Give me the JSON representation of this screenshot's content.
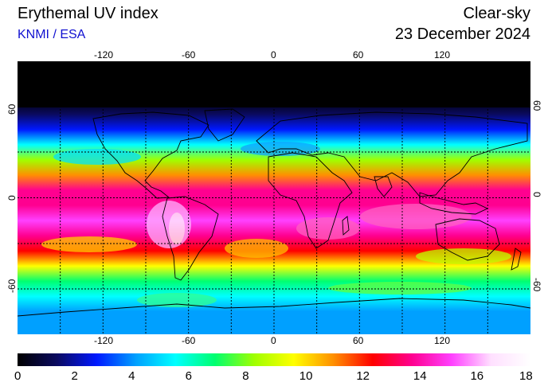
{
  "header": {
    "title": "Erythemal UV index",
    "credit": "KNMI / ESA",
    "mode": "Clear-sky",
    "date": "23 December 2024"
  },
  "map": {
    "projection": "equirectangular",
    "lon_ticks_top": [
      "-120",
      "-60",
      "0",
      "60",
      "120"
    ],
    "lon_ticks_bottom": [
      "-120",
      "-60",
      "0",
      "60",
      "120"
    ],
    "lat_ticks_left": [
      "60",
      "0",
      "-60"
    ],
    "lat_ticks_right": [
      "60",
      "0",
      "-60"
    ],
    "gridlines": "dotted every 30°"
  },
  "colorbar": {
    "min": 0,
    "max": 18,
    "labels": [
      "0",
      "2",
      "4",
      "6",
      "8",
      "10",
      "12",
      "14",
      "16",
      "18"
    ],
    "stops": [
      "#000000",
      "#0a0a60",
      "#0018ff",
      "#00a0ff",
      "#00ffff",
      "#00ff70",
      "#a0ff00",
      "#ffff00",
      "#ff9000",
      "#ff0000",
      "#ff0090",
      "#ff40ff",
      "#ffe0ff",
      "#ffffff"
    ]
  },
  "uv_profile_by_latitude": {
    "lat": [
      90,
      75,
      65,
      55,
      45,
      35,
      25,
      15,
      5,
      -5,
      -15,
      -25,
      -35,
      -45,
      -55,
      -65,
      -75,
      -90
    ],
    "uv": [
      0,
      0,
      0.2,
      1.0,
      3.0,
      5.5,
      8.5,
      11.5,
      13.5,
      14.5,
      14.8,
      14.0,
      12.0,
      9.0,
      7.0,
      5.5,
      4.5,
      3.5
    ]
  }
}
